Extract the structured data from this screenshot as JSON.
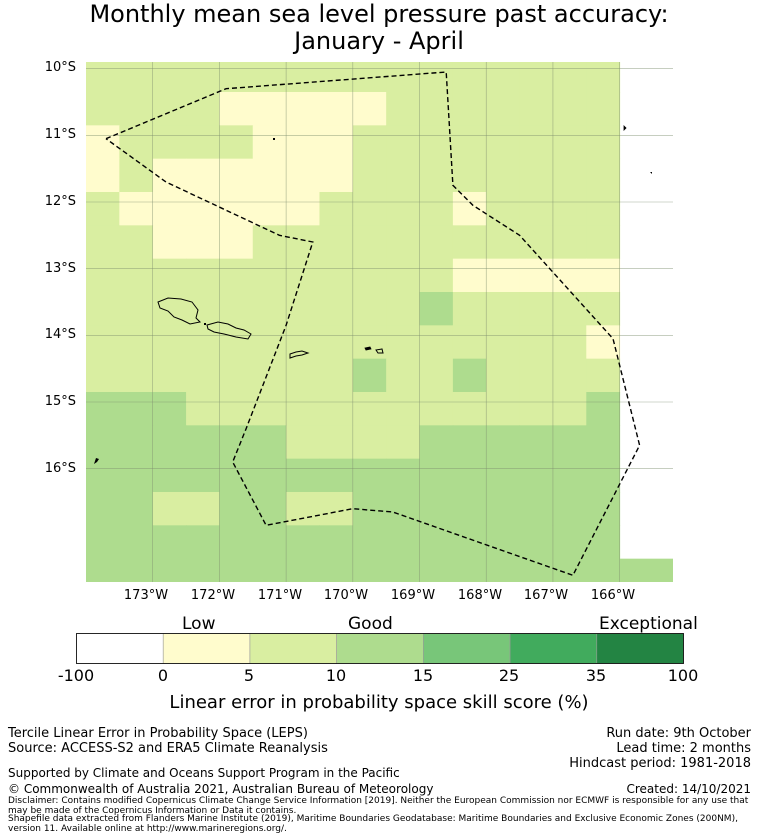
{
  "title": {
    "line1": "Monthly mean sea level pressure past accuracy:",
    "line2": "January - April"
  },
  "map": {
    "lat_labels": [
      "10°S",
      "11°S",
      "12°S",
      "13°S",
      "14°S",
      "15°S",
      "16°S"
    ],
    "lon_labels": [
      "173°W",
      "172°W",
      "171°W",
      "170°W",
      "169°W",
      "168°W",
      "167°W",
      "166°W"
    ],
    "lat_range": [
      -17.7,
      -9.9
    ],
    "lon_range": [
      -174.0,
      -165.2
    ],
    "cell_size_deg": 0.5,
    "colors": {
      "low": "#fffccd",
      "good_low": "#d9eea1",
      "good_high": "#aedc8e",
      "boundary": "#000000",
      "land": "#000000"
    },
    "grid_values": [
      "good_low,good_low,good_low,good_low,good_low,good_low,good_low,good_low,good_low,good_low,good_low,good_low,good_low,good_low,good_low,good_low",
      "good_low,good_low,good_low,good_low,low,low,low,low,low,good_low,good_low,good_low,good_low,good_low,good_low,good_low",
      "low,good_low,good_low,good_low,good_low,low,low,low,good_low,good_low,good_low,good_low,good_low,good_low,good_low,good_low",
      "low,good_low,low,low,low,low,low,low,good_low,good_low,good_low,good_low,good_low,good_low,good_low,good_low",
      "good_low,low,low,low,low,low,low,good_low,good_low,good_low,good_low,low,good_low,good_low,good_low,good_low",
      "good_low,good_low,low,low,low,good_low,good_low,good_low,good_low,good_low,good_low,good_low,good_low,good_low,good_low,good_low",
      "good_low,good_low,good_low,good_low,good_low,good_low,good_low,good_low,good_low,good_low,good_low,low,low,low,low,low",
      "good_low,good_low,good_low,good_low,good_low,good_low,good_low,good_low,good_low,good_low,good_high,good_low,good_low,good_low,good_low,good_low",
      "good_low,good_low,good_low,good_low,good_low,good_low,good_low,good_low,good_low,good_low,good_low,good_low,good_low,good_low,good_low,low",
      "good_low,good_low,good_low,good_low,good_low,good_low,good_low,good_low,good_high,good_low,good_low,good_high,good_low,good_low,good_low,good_low",
      "good_high,good_high,good_high,good_low,good_low,good_low,good_low,good_low,good_low,good_low,good_low,good_low,good_low,good_low,good_low,good_high",
      "good_high,good_high,good_high,good_high,good_high,good_high,good_low,good_low,good_low,good_low,good_high,good_high,good_high,good_high,good_high,good_high",
      "good_high,good_high,good_high,good_high,good_high,good_high,good_high,good_high,good_high,good_high,good_high,good_high,good_high,good_high,good_high,good_high",
      "good_high,good_high,good_low,good_low,good_high,good_high,good_low,good_low,good_high,good_high,good_high,good_high,good_high,good_high,good_high,good_high",
      "good_high,good_high,good_high,good_high,good_high,good_high,good_high,good_high,good_high,good_high,good_high,good_high,good_high,good_high,good_high,good_high"
    ],
    "boundary_lonlat": [
      [
        -173.7,
        -11.05
      ],
      [
        -171.9,
        -10.3
      ],
      [
        -168.6,
        -10.05
      ],
      [
        -168.5,
        -11.75
      ],
      [
        -168.2,
        -12.05
      ],
      [
        -167.5,
        -12.5
      ],
      [
        -166.1,
        -14.05
      ],
      [
        -165.7,
        -15.65
      ],
      [
        -166.7,
        -17.6
      ],
      [
        -169.4,
        -16.65
      ],
      [
        -170.0,
        -16.6
      ],
      [
        -171.3,
        -16.85
      ],
      [
        -171.8,
        -15.9
      ],
      [
        -171.6,
        -15.4
      ],
      [
        -171.0,
        -13.85
      ],
      [
        -170.6,
        -12.6
      ],
      [
        -171.1,
        -12.5
      ],
      [
        -172.8,
        -11.7
      ],
      [
        -173.7,
        -11.05
      ]
    ]
  },
  "colorbar": {
    "categories": [
      "Low",
      "Good",
      "Exceptional"
    ],
    "ticks": [
      "-100",
      "0",
      "5",
      "10",
      "15",
      "25",
      "35",
      "100"
    ],
    "colors": [
      "#ffffff",
      "#fffccd",
      "#d9eea1",
      "#aedc8e",
      "#78c679",
      "#41ab5d",
      "#238443"
    ],
    "title": "Linear error in probability space skill score (%)"
  },
  "footer": {
    "left_line1": "Tercile Linear Error in Probability Space (LEPS)",
    "left_line2": "Source: ACCESS-S2 and ERA5 Climate Reanalysis",
    "support": "Supported by Climate and Oceans Support Program in the Pacific",
    "copyright": "© Commonwealth of Australia 2021, Australian Bureau of Meteorology",
    "run_date": "Run date: 9th October",
    "lead_time": "Lead time: 2 months",
    "hindcast": "Hindcast period: 1981-2018",
    "created": "Created: 14/10/2021",
    "disclaimer": "Disclaimer: Contains modified Copernicus Climate Change Service Information [2019]. Neither the European Commission nor ECMWF is responsible for any use that may be made of the Copernicus Information or Data it contains.",
    "shapefile": "Shapefile data extracted from Flanders Marine Institute (2019), Maritime Boundaries Geodatabase: Maritime Boundaries and Exclusive Economic Zones (200NM), version 11. Available online at http://www.marineregions.org/."
  }
}
